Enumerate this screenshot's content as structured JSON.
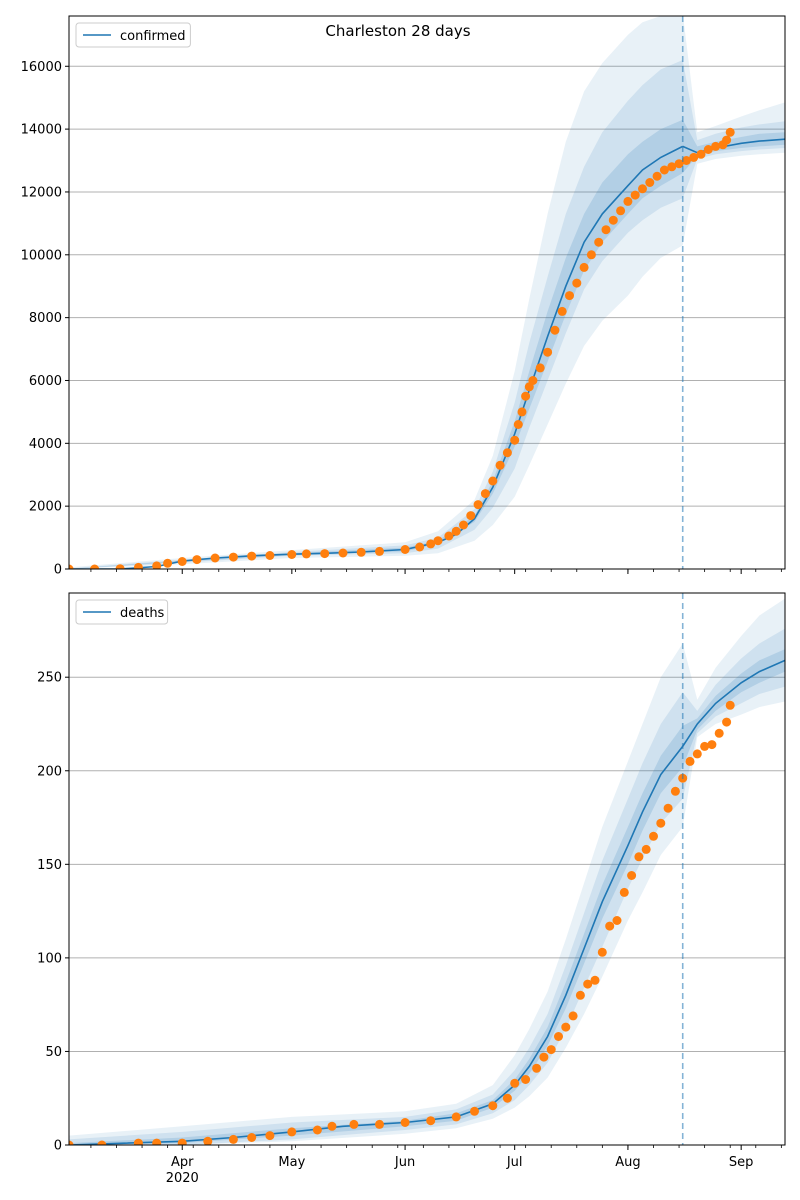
{
  "figure": {
    "title": "Charleston 28 days"
  },
  "colors": {
    "line": "#1f77b4",
    "points": "#ff7f0e",
    "band": "#1f77b4",
    "grid": "#b0b0b0",
    "vline": "#1f77b4"
  },
  "chart_data": [
    {
      "type": "line",
      "title": "Charleston 28 days",
      "legend": {
        "entries": [
          "confirmed"
        ],
        "placement": "top-left"
      },
      "xlim": [
        "2020-03-01",
        "2020-09-13"
      ],
      "ylim": [
        0,
        17600
      ],
      "yticks": [
        0,
        2000,
        4000,
        6000,
        8000,
        10000,
        12000,
        14000,
        16000
      ],
      "xticks": [
        {
          "date": "2020-04-01",
          "label": "Apr"
        },
        {
          "date": "2020-05-01",
          "label": "May"
        },
        {
          "date": "2020-06-01",
          "label": "Jun"
        },
        {
          "date": "2020-07-01",
          "label": "Jul"
        },
        {
          "date": "2020-08-01",
          "label": "Aug"
        },
        {
          "date": "2020-09-01",
          "label": "Sep"
        }
      ],
      "xtick_sublabel": {
        "date": "2020-04-01",
        "label": "2020"
      },
      "forecast_start": "2020-08-16",
      "grid": "horizontal",
      "series": [
        {
          "name": "confirmed",
          "kind": "fit",
          "x": [
            "2020-03-01",
            "2020-03-15",
            "2020-03-25",
            "2020-04-01",
            "2020-04-10",
            "2020-04-20",
            "2020-05-01",
            "2020-05-10",
            "2020-05-20",
            "2020-06-01",
            "2020-06-10",
            "2020-06-15",
            "2020-06-20",
            "2020-06-25",
            "2020-07-01",
            "2020-07-05",
            "2020-07-10",
            "2020-07-15",
            "2020-07-20",
            "2020-07-25",
            "2020-08-01",
            "2020-08-05",
            "2020-08-10",
            "2020-08-16",
            "2020-08-20",
            "2020-08-25",
            "2020-09-01",
            "2020-09-06",
            "2020-09-13"
          ],
          "y": [
            0,
            0,
            80,
            250,
            350,
            420,
            470,
            500,
            540,
            620,
            850,
            1100,
            1600,
            2600,
            4300,
            5700,
            7400,
            9000,
            10400,
            11300,
            12200,
            12700,
            13100,
            13450,
            13250,
            13400,
            13550,
            13620,
            13680
          ]
        },
        {
          "name": "",
          "kind": "band",
          "x": [
            "2020-03-01",
            "2020-04-01",
            "2020-05-01",
            "2020-06-01",
            "2020-06-10",
            "2020-06-20",
            "2020-06-25",
            "2020-07-01",
            "2020-07-05",
            "2020-07-10",
            "2020-07-15",
            "2020-07-20",
            "2020-07-25",
            "2020-08-01",
            "2020-08-05",
            "2020-08-10",
            "2020-08-16",
            "2020-08-20",
            "2020-08-25",
            "2020-09-01",
            "2020-09-06",
            "2020-09-13"
          ],
          "upper": [
            50,
            350,
            600,
            850,
            1200,
            2200,
            3600,
            6300,
            8600,
            11300,
            13600,
            15200,
            16100,
            17000,
            17400,
            17600,
            17700,
            13900,
            14100,
            14400,
            14600,
            14850
          ],
          "lower": [
            0,
            150,
            350,
            420,
            500,
            900,
            1400,
            2300,
            3300,
            4600,
            5900,
            7100,
            7900,
            8700,
            9300,
            9900,
            10300,
            12900,
            13050,
            13150,
            13200,
            13250
          ]
        },
        {
          "name": "",
          "kind": "band",
          "x": [
            "2020-03-01",
            "2020-04-01",
            "2020-05-01",
            "2020-06-01",
            "2020-06-10",
            "2020-06-20",
            "2020-06-25",
            "2020-07-01",
            "2020-07-05",
            "2020-07-10",
            "2020-07-15",
            "2020-07-20",
            "2020-07-25",
            "2020-08-01",
            "2020-08-05",
            "2020-08-10",
            "2020-08-16",
            "2020-08-20",
            "2020-08-25",
            "2020-09-01",
            "2020-09-06",
            "2020-09-13"
          ],
          "upper": [
            20,
            300,
            540,
            750,
            1000,
            1900,
            3100,
            5300,
            7200,
            9300,
            11300,
            12800,
            13900,
            14900,
            15400,
            15900,
            16200,
            13650,
            13850,
            14050,
            14150,
            14250
          ],
          "lower": [
            0,
            200,
            420,
            500,
            650,
            1250,
            1950,
            3200,
            4500,
            6000,
            7500,
            8900,
            9800,
            10700,
            11100,
            11500,
            11800,
            13050,
            13200,
            13300,
            13350,
            13400
          ]
        },
        {
          "name": "",
          "kind": "band",
          "x": [
            "2020-03-01",
            "2020-04-01",
            "2020-05-01",
            "2020-06-01",
            "2020-06-10",
            "2020-06-20",
            "2020-06-25",
            "2020-07-01",
            "2020-07-05",
            "2020-07-10",
            "2020-07-15",
            "2020-07-20",
            "2020-07-25",
            "2020-08-01",
            "2020-08-05",
            "2020-08-10",
            "2020-08-16",
            "2020-08-20",
            "2020-08-25",
            "2020-09-01",
            "2020-09-06",
            "2020-09-13"
          ],
          "upper": [
            5,
            270,
            500,
            680,
            900,
            1700,
            2800,
            4700,
            6300,
            8200,
            9900,
            11300,
            12300,
            13200,
            13600,
            14000,
            14300,
            13450,
            13600,
            13750,
            13850,
            13900
          ],
          "lower": [
            0,
            230,
            450,
            560,
            800,
            1500,
            2400,
            3900,
            5100,
            6600,
            8100,
            9500,
            10400,
            11300,
            11800,
            12200,
            12600,
            13150,
            13300,
            13400,
            13450,
            13500
          ]
        },
        {
          "name": "",
          "kind": "observed",
          "x": [
            "2020-03-01",
            "2020-03-08",
            "2020-03-15",
            "2020-03-20",
            "2020-03-25",
            "2020-03-28",
            "2020-04-01",
            "2020-04-05",
            "2020-04-10",
            "2020-04-15",
            "2020-04-20",
            "2020-04-25",
            "2020-05-01",
            "2020-05-05",
            "2020-05-10",
            "2020-05-15",
            "2020-05-20",
            "2020-05-25",
            "2020-06-01",
            "2020-06-05",
            "2020-06-08",
            "2020-06-10",
            "2020-06-13",
            "2020-06-15",
            "2020-06-17",
            "2020-06-19",
            "2020-06-21",
            "2020-06-23",
            "2020-06-25",
            "2020-06-27",
            "2020-06-29",
            "2020-07-01",
            "2020-07-02",
            "2020-07-03",
            "2020-07-04",
            "2020-07-05",
            "2020-07-06",
            "2020-07-08",
            "2020-07-10",
            "2020-07-12",
            "2020-07-14",
            "2020-07-16",
            "2020-07-18",
            "2020-07-20",
            "2020-07-22",
            "2020-07-24",
            "2020-07-26",
            "2020-07-28",
            "2020-07-30",
            "2020-08-01",
            "2020-08-03",
            "2020-08-05",
            "2020-08-07",
            "2020-08-09",
            "2020-08-11",
            "2020-08-13",
            "2020-08-15",
            "2020-08-17",
            "2020-08-19",
            "2020-08-21",
            "2020-08-23",
            "2020-08-25",
            "2020-08-27",
            "2020-08-28",
            "2020-08-29"
          ],
          "y": [
            0,
            0,
            10,
            50,
            100,
            180,
            240,
            300,
            350,
            380,
            410,
            430,
            460,
            480,
            490,
            510,
            530,
            560,
            620,
            700,
            800,
            900,
            1050,
            1200,
            1400,
            1700,
            2050,
            2400,
            2800,
            3300,
            3700,
            4100,
            4600,
            5000,
            5500,
            5800,
            6000,
            6400,
            6900,
            7600,
            8200,
            8700,
            9100,
            9600,
            10000,
            10400,
            10800,
            11100,
            11400,
            11700,
            11900,
            12100,
            12300,
            12500,
            12700,
            12800,
            12900,
            13000,
            13100,
            13200,
            13350,
            13450,
            13500,
            13650,
            13900
          ]
        }
      ]
    },
    {
      "type": "line",
      "title": "",
      "legend": {
        "entries": [
          "deaths"
        ],
        "placement": "top-left"
      },
      "xlim": [
        "2020-03-01",
        "2020-09-13"
      ],
      "ylim": [
        0,
        295
      ],
      "yticks": [
        0,
        50,
        100,
        150,
        200,
        250
      ],
      "xticks": [
        {
          "date": "2020-04-01",
          "label": "Apr"
        },
        {
          "date": "2020-05-01",
          "label": "May"
        },
        {
          "date": "2020-06-01",
          "label": "Jun"
        },
        {
          "date": "2020-07-01",
          "label": "Jul"
        },
        {
          "date": "2020-08-01",
          "label": "Aug"
        },
        {
          "date": "2020-09-01",
          "label": "Sep"
        }
      ],
      "xtick_sublabel": {
        "date": "2020-04-01",
        "label": "2020"
      },
      "forecast_start": "2020-08-16",
      "grid": "horizontal",
      "series": [
        {
          "name": "deaths",
          "kind": "fit",
          "x": [
            "2020-03-01",
            "2020-04-01",
            "2020-04-15",
            "2020-05-01",
            "2020-05-15",
            "2020-06-01",
            "2020-06-15",
            "2020-06-25",
            "2020-07-01",
            "2020-07-05",
            "2020-07-10",
            "2020-07-15",
            "2020-07-20",
            "2020-07-25",
            "2020-08-01",
            "2020-08-05",
            "2020-08-10",
            "2020-08-16",
            "2020-08-20",
            "2020-08-25",
            "2020-09-01",
            "2020-09-06",
            "2020-09-13"
          ],
          "y": [
            0,
            2,
            4,
            7,
            10,
            12,
            15,
            22,
            32,
            42,
            58,
            80,
            105,
            130,
            160,
            178,
            198,
            213,
            225,
            236,
            247,
            253,
            259
          ]
        },
        {
          "name": "",
          "kind": "band",
          "x": [
            "2020-03-01",
            "2020-04-01",
            "2020-05-01",
            "2020-06-01",
            "2020-06-15",
            "2020-06-25",
            "2020-07-01",
            "2020-07-05",
            "2020-07-10",
            "2020-07-15",
            "2020-07-20",
            "2020-07-25",
            "2020-08-01",
            "2020-08-05",
            "2020-08-10",
            "2020-08-16",
            "2020-08-20",
            "2020-08-25",
            "2020-09-01",
            "2020-09-06",
            "2020-09-13"
          ],
          "upper": [
            5,
            10,
            15,
            18,
            22,
            32,
            48,
            62,
            82,
            110,
            140,
            170,
            205,
            225,
            250,
            268,
            238,
            255,
            272,
            283,
            292
          ],
          "lower": [
            0,
            0,
            2,
            6,
            9,
            14,
            20,
            26,
            36,
            52,
            70,
            90,
            120,
            135,
            155,
            170,
            218,
            225,
            230,
            234,
            237
          ]
        },
        {
          "name": "",
          "kind": "band",
          "x": [
            "2020-03-01",
            "2020-04-01",
            "2020-05-01",
            "2020-06-01",
            "2020-06-15",
            "2020-06-25",
            "2020-07-01",
            "2020-07-05",
            "2020-07-10",
            "2020-07-15",
            "2020-07-20",
            "2020-07-25",
            "2020-08-01",
            "2020-08-05",
            "2020-08-10",
            "2020-08-16",
            "2020-08-20",
            "2020-08-25",
            "2020-09-01",
            "2020-09-06",
            "2020-09-13"
          ],
          "upper": [
            3,
            7,
            12,
            15,
            19,
            27,
            40,
            52,
            70,
            96,
            124,
            152,
            185,
            204,
            225,
            242,
            232,
            246,
            260,
            268,
            276
          ],
          "lower": [
            0,
            0,
            3,
            8,
            11,
            17,
            24,
            32,
            44,
            62,
            84,
            106,
            137,
            153,
            172,
            185,
            220,
            229,
            236,
            241,
            245
          ]
        },
        {
          "name": "",
          "kind": "band",
          "x": [
            "2020-03-01",
            "2020-04-01",
            "2020-05-01",
            "2020-06-01",
            "2020-06-15",
            "2020-06-25",
            "2020-07-01",
            "2020-07-05",
            "2020-07-10",
            "2020-07-15",
            "2020-07-20",
            "2020-07-25",
            "2020-08-01",
            "2020-08-05",
            "2020-08-10",
            "2020-08-16",
            "2020-08-20",
            "2020-08-25",
            "2020-09-01",
            "2020-09-06",
            "2020-09-13"
          ],
          "upper": [
            1,
            4,
            9,
            13,
            17,
            24,
            35,
            46,
            63,
            87,
            113,
            139,
            170,
            188,
            208,
            224,
            228,
            240,
            252,
            259,
            265
          ],
          "lower": [
            0,
            1,
            5,
            10,
            13,
            20,
            29,
            38,
            53,
            73,
            97,
            121,
            150,
            168,
            188,
            202,
            222,
            232,
            242,
            247,
            253
          ]
        },
        {
          "name": "",
          "kind": "observed",
          "x": [
            "2020-03-01",
            "2020-03-10",
            "2020-03-20",
            "2020-03-25",
            "2020-04-01",
            "2020-04-08",
            "2020-04-15",
            "2020-04-20",
            "2020-04-25",
            "2020-05-01",
            "2020-05-08",
            "2020-05-12",
            "2020-05-18",
            "2020-05-25",
            "2020-06-01",
            "2020-06-08",
            "2020-06-15",
            "2020-06-20",
            "2020-06-25",
            "2020-06-29",
            "2020-07-01",
            "2020-07-04",
            "2020-07-07",
            "2020-07-09",
            "2020-07-11",
            "2020-07-13",
            "2020-07-15",
            "2020-07-17",
            "2020-07-19",
            "2020-07-21",
            "2020-07-23",
            "2020-07-25",
            "2020-07-27",
            "2020-07-29",
            "2020-07-31",
            "2020-08-02",
            "2020-08-04",
            "2020-08-06",
            "2020-08-08",
            "2020-08-10",
            "2020-08-12",
            "2020-08-14",
            "2020-08-16",
            "2020-08-18",
            "2020-08-20",
            "2020-08-22",
            "2020-08-24",
            "2020-08-26",
            "2020-08-28",
            "2020-08-29"
          ],
          "y": [
            0,
            0,
            1,
            1,
            1,
            2,
            3,
            4,
            5,
            7,
            8,
            10,
            11,
            11,
            12,
            13,
            15,
            18,
            21,
            25,
            33,
            35,
            41,
            47,
            51,
            58,
            63,
            69,
            80,
            86,
            88,
            103,
            117,
            120,
            135,
            144,
            154,
            158,
            165,
            172,
            180,
            189,
            196,
            205,
            209,
            213,
            214,
            220,
            226,
            235
          ]
        }
      ]
    }
  ]
}
